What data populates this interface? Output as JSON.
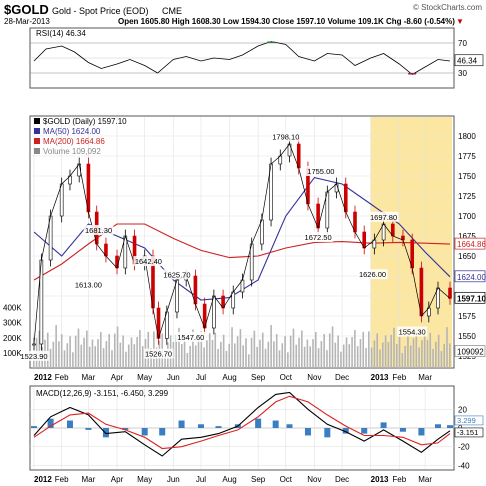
{
  "header": {
    "ticker": "$GOLD",
    "name": "Gold - Spot Price (EOD)",
    "exchange": "CME",
    "copyright": "© StockCharts.com",
    "date": "28-Mar-2013",
    "quote": "Open 1605.80  High 1608.30  Low 1594.30  Close 1597.10  Volume 109.1K  Chg -8.60 (-0.54%)",
    "chg_arrow": "▼"
  },
  "colors": {
    "price": "#000000",
    "down": "#cc0000",
    "ma50": "#333399",
    "ma200": "#cc2222",
    "volume": "#b5b5b5",
    "highlight": "#fbe6a2",
    "macd_hist": "#3a7dc0",
    "rsi_over": "#2e7d32",
    "rsi_under": "#8b2252"
  },
  "chart_data": [
    {
      "type": "line",
      "panel": "rsi",
      "label": "RSI(14) 46.34",
      "ylim": [
        10,
        90
      ],
      "ticks": [
        "70",
        "50",
        "30"
      ],
      "levels": [
        70,
        30
      ],
      "last": "46.34",
      "x": [
        "2012-01-02",
        "2012-01-15",
        "2012-02-01",
        "2012-02-15",
        "2012-03-01",
        "2012-03-15",
        "2012-04-01",
        "2012-04-15",
        "2012-05-01",
        "2012-05-15",
        "2012-06-01",
        "2012-06-15",
        "2012-07-01",
        "2012-07-15",
        "2012-08-01",
        "2012-08-15",
        "2012-09-01",
        "2012-09-15",
        "2012-10-01",
        "2012-10-15",
        "2012-11-01",
        "2012-11-15",
        "2012-12-01",
        "2012-12-15",
        "2013-01-01",
        "2013-01-15",
        "2013-02-01",
        "2013-02-15",
        "2013-03-01",
        "2013-03-15",
        "2013-03-28"
      ],
      "values": [
        46,
        62,
        66,
        58,
        44,
        36,
        42,
        48,
        40,
        30,
        48,
        52,
        46,
        50,
        48,
        54,
        66,
        72,
        68,
        52,
        46,
        56,
        54,
        40,
        50,
        56,
        42,
        28,
        38,
        48,
        46
      ]
    },
    {
      "type": "candlestick",
      "panel": "price",
      "label": "$GOLD (Daily) 1597.10",
      "ylim": [
        1510,
        1825
      ],
      "ticks": [
        "1800",
        "1775",
        "1750",
        "1725",
        "1700",
        "1675",
        "1650",
        "1625",
        "1600",
        "1575",
        "1550",
        "1525"
      ],
      "x": [
        "2012-01-02",
        "2012-01-10",
        "2012-01-20",
        "2012-02-01",
        "2012-02-10",
        "2012-02-20",
        "2012-03-01",
        "2012-03-10",
        "2012-03-20",
        "2012-04-01",
        "2012-04-10",
        "2012-04-20",
        "2012-05-01",
        "2012-05-10",
        "2012-05-16",
        "2012-05-25",
        "2012-06-05",
        "2012-06-15",
        "2012-06-25",
        "2012-07-05",
        "2012-07-15",
        "2012-07-25",
        "2012-08-05",
        "2012-08-15",
        "2012-08-25",
        "2012-09-05",
        "2012-09-15",
        "2012-09-25",
        "2012-10-05",
        "2012-10-15",
        "2012-10-25",
        "2012-11-05",
        "2012-11-15",
        "2012-11-25",
        "2012-12-05",
        "2012-12-15",
        "2012-12-25",
        "2013-01-05",
        "2013-01-15",
        "2013-01-25",
        "2013-02-05",
        "2013-02-15",
        "2013-02-25",
        "2013-03-05",
        "2013-03-15",
        "2013-03-28"
      ],
      "close": [
        1540,
        1645,
        1700,
        1740,
        1750,
        1765,
        1705,
        1665,
        1650,
        1635,
        1675,
        1640,
        1650,
        1585,
        1547,
        1580,
        1620,
        1625,
        1590,
        1560,
        1600,
        1585,
        1605,
        1620,
        1665,
        1695,
        1765,
        1775,
        1790,
        1760,
        1715,
        1685,
        1730,
        1740,
        1705,
        1680,
        1660,
        1670,
        1690,
        1675,
        1670,
        1635,
        1575,
        1585,
        1610,
        1597
      ],
      "annotations": [
        {
          "x": "2012-01-02",
          "y": 1523.9,
          "text": "1523.90"
        },
        {
          "x": "2012-03-12",
          "y": 1681.3,
          "text": "1681.30"
        },
        {
          "x": "2012-03-01",
          "y": 1613.0,
          "text": "1613.00"
        },
        {
          "x": "2012-05-05",
          "y": 1642.4,
          "text": "1642.40"
        },
        {
          "x": "2012-06-05",
          "y": 1625.7,
          "text": "1625.70"
        },
        {
          "x": "2012-06-20",
          "y": 1547.6,
          "text": "1547.60"
        },
        {
          "x": "2012-05-16",
          "y": 1526.7,
          "text": "1526.70"
        },
        {
          "x": "2012-10-01",
          "y": 1798.1,
          "text": "1798.10"
        },
        {
          "x": "2012-11-08",
          "y": 1755.0,
          "text": "1755.00"
        },
        {
          "x": "2012-11-05",
          "y": 1672.5,
          "text": "1672.50"
        },
        {
          "x": "2013-01-15",
          "y": 1697.8,
          "text": "1697.80"
        },
        {
          "x": "2013-01-03",
          "y": 1626.0,
          "text": "1626.00"
        },
        {
          "x": "2013-02-15",
          "y": 1554.3,
          "text": "1554.30"
        }
      ],
      "series": [
        {
          "name": "MA(50) 1624.00",
          "last": "1624.00",
          "x": [
            "2012-01-02",
            "2012-02-01",
            "2012-03-01",
            "2012-04-01",
            "2012-05-01",
            "2012-06-01",
            "2012-07-01",
            "2012-08-01",
            "2012-09-01",
            "2012-10-01",
            "2012-11-01",
            "2012-12-01",
            "2013-01-01",
            "2013-02-01",
            "2013-03-01",
            "2013-03-28"
          ],
          "values": [
            1680,
            1650,
            1690,
            1675,
            1660,
            1620,
            1595,
            1598,
            1620,
            1700,
            1748,
            1740,
            1715,
            1690,
            1655,
            1624
          ]
        },
        {
          "name": "MA(200) 1664.86",
          "last": "1664.86",
          "x": [
            "2012-01-02",
            "2012-02-01",
            "2012-03-01",
            "2012-04-01",
            "2012-05-01",
            "2012-06-01",
            "2012-07-01",
            "2012-08-01",
            "2012-09-01",
            "2012-10-01",
            "2012-11-01",
            "2012-12-01",
            "2013-01-01",
            "2013-02-01",
            "2013-03-01",
            "2013-03-28"
          ],
          "values": [
            1620,
            1640,
            1665,
            1690,
            1690,
            1672,
            1657,
            1648,
            1650,
            1660,
            1667,
            1668,
            1666,
            1667,
            1666,
            1664.86
          ]
        }
      ],
      "legend": [
        "$GOLD (Daily) 1597.10",
        "MA(50) 1624.00",
        "MA(200) 1664.86",
        "Volume 109,092"
      ],
      "highlight_x": [
        "2013-01-01",
        "2013-03-28"
      ]
    },
    {
      "type": "bar",
      "panel": "volume",
      "label": "Volume 109,092",
      "ticks": [
        "400K",
        "300K",
        "200K",
        "100K"
      ],
      "ylim": [
        0,
        450000
      ],
      "last": "109092"
    },
    {
      "type": "line",
      "panel": "macd",
      "label": "MACD(12,26,9) -3.151, -6.450, 3.299",
      "ylim": [
        -45,
        45
      ],
      "ticks": [
        "20",
        "0",
        "-20",
        "-40"
      ],
      "last_labels": [
        "3.299",
        "-3.151"
      ],
      "x": [
        "2012-01-02",
        "2012-01-20",
        "2012-02-10",
        "2012-03-01",
        "2012-03-20",
        "2012-04-10",
        "2012-05-01",
        "2012-05-20",
        "2012-06-10",
        "2012-07-01",
        "2012-07-20",
        "2012-08-10",
        "2012-09-01",
        "2012-09-20",
        "2012-10-05",
        "2012-10-25",
        "2012-11-15",
        "2012-12-05",
        "2012-12-25",
        "2013-01-15",
        "2013-02-05",
        "2013-02-25",
        "2013-03-15",
        "2013-03-28"
      ],
      "series": [
        {
          "name": "MACD(12,26,9)",
          "values": [
            -8,
            12,
            22,
            14,
            -6,
            -4,
            -18,
            -30,
            -12,
            -10,
            -6,
            2,
            22,
            36,
            38,
            20,
            4,
            -4,
            -14,
            -2,
            -14,
            -26,
            -12,
            -3
          ]
        },
        {
          "name": "Signal",
          "values": [
            -10,
            2,
            14,
            16,
            4,
            -2,
            -10,
            -22,
            -20,
            -14,
            -8,
            -2,
            12,
            28,
            34,
            28,
            14,
            2,
            -8,
            -8,
            -10,
            -18,
            -16,
            -6
          ]
        }
      ]
    }
  ],
  "x_axis": {
    "labels": [
      "2012",
      "Feb",
      "Mar",
      "Apr",
      "May",
      "Jun",
      "Jul",
      "Aug",
      "Sep",
      "Oct",
      "Nov",
      "Dec",
      "2013",
      "Feb",
      "Mar"
    ],
    "dates": [
      "2012-01-02",
      "2012-02-01",
      "2012-03-01",
      "2012-04-01",
      "2012-05-01",
      "2012-06-01",
      "2012-07-01",
      "2012-08-01",
      "2012-09-01",
      "2012-10-01",
      "2012-11-01",
      "2012-12-01",
      "2013-01-01",
      "2013-02-01",
      "2013-03-01"
    ]
  },
  "price_tags": {
    "ma200": "1664.86",
    "ma50": "1624.00",
    "close": "1597.10",
    "vol": "109092"
  }
}
